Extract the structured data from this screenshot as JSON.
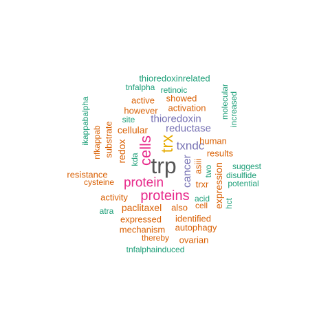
{
  "colors": {
    "teal": "#1b9e77",
    "orange": "#d95f02",
    "purple": "#7570b3",
    "magenta": "#e7298a",
    "mustard": "#e6ab02",
    "dark": "#555555"
  },
  "words": [
    {
      "text": "trp",
      "color": "dark"
    },
    {
      "text": "trx",
      "color": "mustard"
    },
    {
      "text": "cells",
      "color": "magenta"
    },
    {
      "text": "proteins",
      "color": "magenta"
    },
    {
      "text": "protein",
      "color": "magenta"
    },
    {
      "text": "txndc",
      "color": "purple"
    },
    {
      "text": "thioredoxin",
      "color": "purple"
    },
    {
      "text": "reductase",
      "color": "purple"
    },
    {
      "text": "cancer",
      "color": "purple"
    },
    {
      "text": "thioredoxinrelated",
      "color": "teal"
    },
    {
      "text": "tnfalpha",
      "color": "teal"
    },
    {
      "text": "retinoic",
      "color": "teal"
    },
    {
      "text": "active",
      "color": "orange"
    },
    {
      "text": "showed",
      "color": "orange"
    },
    {
      "text": "however",
      "color": "orange"
    },
    {
      "text": "activation",
      "color": "orange"
    },
    {
      "text": "site",
      "color": "teal"
    },
    {
      "text": "cellular",
      "color": "orange"
    },
    {
      "text": "molecular",
      "color": "teal"
    },
    {
      "text": "increased",
      "color": "teal"
    },
    {
      "text": "ikappabalpha",
      "color": "teal"
    },
    {
      "text": "nfkappab",
      "color": "orange"
    },
    {
      "text": "substrate",
      "color": "orange"
    },
    {
      "text": "redox",
      "color": "orange"
    },
    {
      "text": "kda",
      "color": "teal"
    },
    {
      "text": "human",
      "color": "orange"
    },
    {
      "text": "results",
      "color": "orange"
    },
    {
      "text": "asiii",
      "color": "orange"
    },
    {
      "text": "two",
      "color": "teal"
    },
    {
      "text": "expression",
      "color": "orange"
    },
    {
      "text": "suggest",
      "color": "teal"
    },
    {
      "text": "disulfide",
      "color": "teal"
    },
    {
      "text": "potential",
      "color": "teal"
    },
    {
      "text": "resistance",
      "color": "orange"
    },
    {
      "text": "cysteine",
      "color": "orange"
    },
    {
      "text": "trxr",
      "color": "orange"
    },
    {
      "text": "acid",
      "color": "teal"
    },
    {
      "text": "cell",
      "color": "orange"
    },
    {
      "text": "hct",
      "color": "teal"
    },
    {
      "text": "activity",
      "color": "orange"
    },
    {
      "text": "paclitaxel",
      "color": "orange"
    },
    {
      "text": "also",
      "color": "orange"
    },
    {
      "text": "atra",
      "color": "teal"
    },
    {
      "text": "expressed",
      "color": "orange"
    },
    {
      "text": "identified",
      "color": "orange"
    },
    {
      "text": "mechanism",
      "color": "orange"
    },
    {
      "text": "autophagy",
      "color": "orange"
    },
    {
      "text": "thereby",
      "color": "orange"
    },
    {
      "text": "ovarian",
      "color": "orange"
    },
    {
      "text": "tnfalphainduced",
      "color": "teal"
    }
  ]
}
